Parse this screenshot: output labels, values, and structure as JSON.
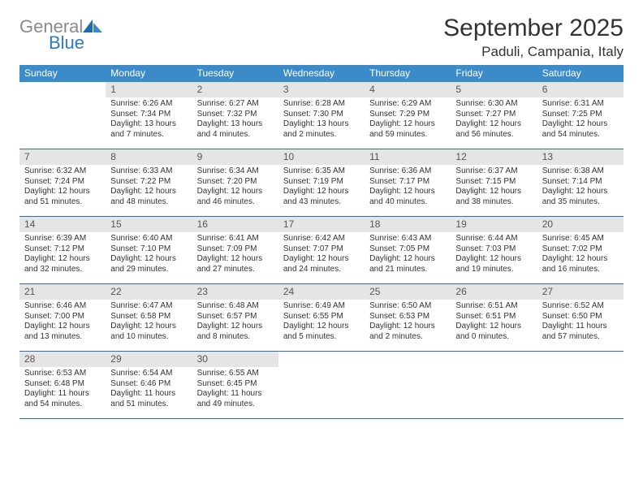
{
  "logo": {
    "word1": "General",
    "word2": "Blue"
  },
  "header": {
    "month_title": "September 2025",
    "location": "Paduli, Campania, Italy"
  },
  "colors": {
    "header_bar": "#3b8bc8",
    "daynum_bg": "#e5e5e5",
    "row_border": "#2f6fa8",
    "logo_gray": "#8a8a8a",
    "logo_blue": "#2f7bbf",
    "text": "#333333",
    "background": "#ffffff"
  },
  "days_of_week": [
    "Sunday",
    "Monday",
    "Tuesday",
    "Wednesday",
    "Thursday",
    "Friday",
    "Saturday"
  ],
  "weeks": [
    [
      {
        "n": "",
        "sunrise": "",
        "sunset": "",
        "daylight": ""
      },
      {
        "n": "1",
        "sunrise": "Sunrise: 6:26 AM",
        "sunset": "Sunset: 7:34 PM",
        "daylight": "Daylight: 13 hours and 7 minutes."
      },
      {
        "n": "2",
        "sunrise": "Sunrise: 6:27 AM",
        "sunset": "Sunset: 7:32 PM",
        "daylight": "Daylight: 13 hours and 4 minutes."
      },
      {
        "n": "3",
        "sunrise": "Sunrise: 6:28 AM",
        "sunset": "Sunset: 7:30 PM",
        "daylight": "Daylight: 13 hours and 2 minutes."
      },
      {
        "n": "4",
        "sunrise": "Sunrise: 6:29 AM",
        "sunset": "Sunset: 7:29 PM",
        "daylight": "Daylight: 12 hours and 59 minutes."
      },
      {
        "n": "5",
        "sunrise": "Sunrise: 6:30 AM",
        "sunset": "Sunset: 7:27 PM",
        "daylight": "Daylight: 12 hours and 56 minutes."
      },
      {
        "n": "6",
        "sunrise": "Sunrise: 6:31 AM",
        "sunset": "Sunset: 7:25 PM",
        "daylight": "Daylight: 12 hours and 54 minutes."
      }
    ],
    [
      {
        "n": "7",
        "sunrise": "Sunrise: 6:32 AM",
        "sunset": "Sunset: 7:24 PM",
        "daylight": "Daylight: 12 hours and 51 minutes."
      },
      {
        "n": "8",
        "sunrise": "Sunrise: 6:33 AM",
        "sunset": "Sunset: 7:22 PM",
        "daylight": "Daylight: 12 hours and 48 minutes."
      },
      {
        "n": "9",
        "sunrise": "Sunrise: 6:34 AM",
        "sunset": "Sunset: 7:20 PM",
        "daylight": "Daylight: 12 hours and 46 minutes."
      },
      {
        "n": "10",
        "sunrise": "Sunrise: 6:35 AM",
        "sunset": "Sunset: 7:19 PM",
        "daylight": "Daylight: 12 hours and 43 minutes."
      },
      {
        "n": "11",
        "sunrise": "Sunrise: 6:36 AM",
        "sunset": "Sunset: 7:17 PM",
        "daylight": "Daylight: 12 hours and 40 minutes."
      },
      {
        "n": "12",
        "sunrise": "Sunrise: 6:37 AM",
        "sunset": "Sunset: 7:15 PM",
        "daylight": "Daylight: 12 hours and 38 minutes."
      },
      {
        "n": "13",
        "sunrise": "Sunrise: 6:38 AM",
        "sunset": "Sunset: 7:14 PM",
        "daylight": "Daylight: 12 hours and 35 minutes."
      }
    ],
    [
      {
        "n": "14",
        "sunrise": "Sunrise: 6:39 AM",
        "sunset": "Sunset: 7:12 PM",
        "daylight": "Daylight: 12 hours and 32 minutes."
      },
      {
        "n": "15",
        "sunrise": "Sunrise: 6:40 AM",
        "sunset": "Sunset: 7:10 PM",
        "daylight": "Daylight: 12 hours and 29 minutes."
      },
      {
        "n": "16",
        "sunrise": "Sunrise: 6:41 AM",
        "sunset": "Sunset: 7:09 PM",
        "daylight": "Daylight: 12 hours and 27 minutes."
      },
      {
        "n": "17",
        "sunrise": "Sunrise: 6:42 AM",
        "sunset": "Sunset: 7:07 PM",
        "daylight": "Daylight: 12 hours and 24 minutes."
      },
      {
        "n": "18",
        "sunrise": "Sunrise: 6:43 AM",
        "sunset": "Sunset: 7:05 PM",
        "daylight": "Daylight: 12 hours and 21 minutes."
      },
      {
        "n": "19",
        "sunrise": "Sunrise: 6:44 AM",
        "sunset": "Sunset: 7:03 PM",
        "daylight": "Daylight: 12 hours and 19 minutes."
      },
      {
        "n": "20",
        "sunrise": "Sunrise: 6:45 AM",
        "sunset": "Sunset: 7:02 PM",
        "daylight": "Daylight: 12 hours and 16 minutes."
      }
    ],
    [
      {
        "n": "21",
        "sunrise": "Sunrise: 6:46 AM",
        "sunset": "Sunset: 7:00 PM",
        "daylight": "Daylight: 12 hours and 13 minutes."
      },
      {
        "n": "22",
        "sunrise": "Sunrise: 6:47 AM",
        "sunset": "Sunset: 6:58 PM",
        "daylight": "Daylight: 12 hours and 10 minutes."
      },
      {
        "n": "23",
        "sunrise": "Sunrise: 6:48 AM",
        "sunset": "Sunset: 6:57 PM",
        "daylight": "Daylight: 12 hours and 8 minutes."
      },
      {
        "n": "24",
        "sunrise": "Sunrise: 6:49 AM",
        "sunset": "Sunset: 6:55 PM",
        "daylight": "Daylight: 12 hours and 5 minutes."
      },
      {
        "n": "25",
        "sunrise": "Sunrise: 6:50 AM",
        "sunset": "Sunset: 6:53 PM",
        "daylight": "Daylight: 12 hours and 2 minutes."
      },
      {
        "n": "26",
        "sunrise": "Sunrise: 6:51 AM",
        "sunset": "Sunset: 6:51 PM",
        "daylight": "Daylight: 12 hours and 0 minutes."
      },
      {
        "n": "27",
        "sunrise": "Sunrise: 6:52 AM",
        "sunset": "Sunset: 6:50 PM",
        "daylight": "Daylight: 11 hours and 57 minutes."
      }
    ],
    [
      {
        "n": "28",
        "sunrise": "Sunrise: 6:53 AM",
        "sunset": "Sunset: 6:48 PM",
        "daylight": "Daylight: 11 hours and 54 minutes."
      },
      {
        "n": "29",
        "sunrise": "Sunrise: 6:54 AM",
        "sunset": "Sunset: 6:46 PM",
        "daylight": "Daylight: 11 hours and 51 minutes."
      },
      {
        "n": "30",
        "sunrise": "Sunrise: 6:55 AM",
        "sunset": "Sunset: 6:45 PM",
        "daylight": "Daylight: 11 hours and 49 minutes."
      },
      {
        "n": "",
        "sunrise": "",
        "sunset": "",
        "daylight": ""
      },
      {
        "n": "",
        "sunrise": "",
        "sunset": "",
        "daylight": ""
      },
      {
        "n": "",
        "sunrise": "",
        "sunset": "",
        "daylight": ""
      },
      {
        "n": "",
        "sunrise": "",
        "sunset": "",
        "daylight": ""
      }
    ]
  ]
}
